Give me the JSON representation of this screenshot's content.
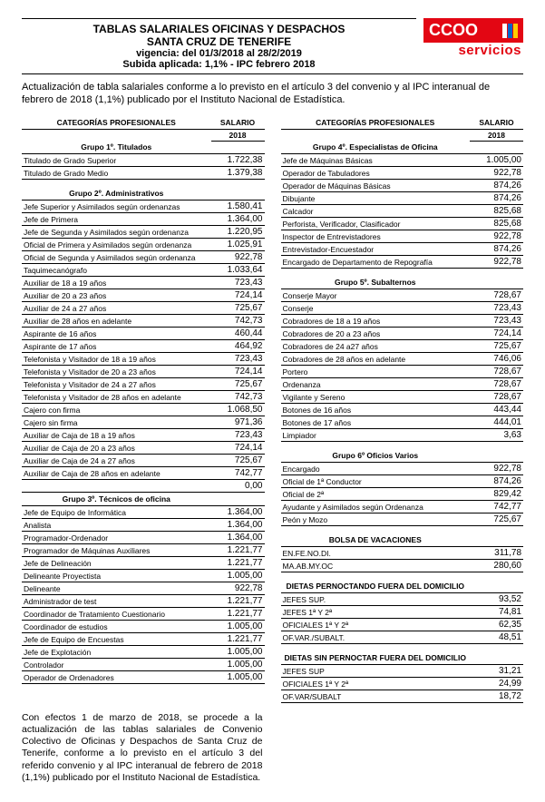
{
  "header": {
    "line1": "TABLAS SALARIALES OFICINAS Y DESPACHOS",
    "line2": "SANTA CRUZ DE TENERIFE",
    "line3": "vigencia: del 01/3/2018 al 28/2/2019",
    "line4": "Subida aplicada: 1,1% - IPC febrero 2018"
  },
  "logo": {
    "text": "CCOO",
    "sub": "servicios",
    "bg": "#e30613",
    "stripe1": "#ffffff",
    "stripe2": "#0066cc",
    "stripe3": "#ffcc00"
  },
  "intro": "Actualización de tabla salariales conforme a lo previsto en el artículo 3 del convenio y al IPC interanual de febrero de 2018 (1,1%) publicado por el Instituto Nacional de Estadística.",
  "col_headers": {
    "cat": "CATEGORÍAS PROFESIONALES",
    "sal": "SALARIO",
    "year": "2018"
  },
  "left": [
    {
      "type": "group",
      "label": "Grupo 1º. Titulados"
    },
    {
      "type": "row",
      "label": "Titulado de Grado Superior",
      "val": "1.722,38"
    },
    {
      "type": "row",
      "label": "Titulado de Grado Medio",
      "val": "1.379,38"
    },
    {
      "type": "spacer"
    },
    {
      "type": "group",
      "label": "Grupo 2º. Administrativos"
    },
    {
      "type": "row",
      "label": "Jefe Superior y Asimilados según ordenanzas",
      "val": "1.580,41"
    },
    {
      "type": "row",
      "label": "Jefe de Primera",
      "val": "1.364,00"
    },
    {
      "type": "row",
      "label": "Jefe de Segunda y Asimilados según ordenanza",
      "val": "1.220,95"
    },
    {
      "type": "row",
      "label": "Oficial de Primera y Asimilados según ordenanza",
      "val": "1.025,91"
    },
    {
      "type": "row",
      "label": "Oficial de Segunda y Asimilados según ordenanza",
      "val": "922,78"
    },
    {
      "type": "row",
      "label": "Taquimecanógrafo",
      "val": "1.033,64"
    },
    {
      "type": "row",
      "label": "Auxiliar de 18 a 19 años",
      "val": "723,43"
    },
    {
      "type": "row",
      "label": "Auxiliar de 20 a 23 años",
      "val": "724,14"
    },
    {
      "type": "row",
      "label": "Auxiliar de 24 a 27 años",
      "val": "725,67"
    },
    {
      "type": "row",
      "label": "Auxiliar de 28 años en adelante",
      "val": "742,73"
    },
    {
      "type": "row",
      "label": "Aspirante de 16 años",
      "val": "460,44"
    },
    {
      "type": "row",
      "label": "Aspirante de 17 años",
      "val": "464,92"
    },
    {
      "type": "row",
      "label": "Telefonista y Visitador de 18 a 19 años",
      "val": "723,43"
    },
    {
      "type": "row",
      "label": "Telefonista y Visitador de 20 a 23 años",
      "val": "724,14"
    },
    {
      "type": "row",
      "label": "Telefonista y Visitador de 24 a 27 años",
      "val": "725,67"
    },
    {
      "type": "row",
      "label": "Telefonista y Visitador de 28 años en adelante",
      "val": "742,73"
    },
    {
      "type": "row",
      "label": "Cajero con firma",
      "val": "1.068,50"
    },
    {
      "type": "row",
      "label": "Cajero sin firma",
      "val": "971,36"
    },
    {
      "type": "row",
      "label": "Auxiliar de Caja de 18 a 19 años",
      "val": "723,43"
    },
    {
      "type": "row",
      "label": "Auxiliar de Caja de 20 a 23 años",
      "val": "724,14"
    },
    {
      "type": "row",
      "label": "Auxiliar de Caja de 24 a 27 años",
      "val": "725,67"
    },
    {
      "type": "row",
      "label": "Auxiliar de Caja de 28 años en adelante",
      "val": "742,77"
    },
    {
      "type": "row",
      "label": "",
      "val": "0,00"
    },
    {
      "type": "group",
      "label": "Grupo 3º. Técnicos de oficina"
    },
    {
      "type": "row",
      "label": "Jefe de Equipo de Informática",
      "val": "1.364,00"
    },
    {
      "type": "row",
      "label": "Analista",
      "val": "1.364,00"
    },
    {
      "type": "row",
      "label": "Programador-Ordenador",
      "val": "1.364,00"
    },
    {
      "type": "row",
      "label": "Programador de Máquinas Auxiliares",
      "val": "1.221,77"
    },
    {
      "type": "row",
      "label": "Jefe de Delineación",
      "val": "1.221,77"
    },
    {
      "type": "row",
      "label": "Delineante Proyectista",
      "val": "1.005,00"
    },
    {
      "type": "row",
      "label": "Delineante",
      "val": "922,78"
    },
    {
      "type": "row",
      "label": "Administrador de test",
      "val": "1.221,77"
    },
    {
      "type": "row",
      "label": "Coordinador de Tratamiento Cuestionario",
      "val": "1.221,77"
    },
    {
      "type": "row",
      "label": "Coordinador de estudios",
      "val": "1.005,00"
    },
    {
      "type": "row",
      "label": "Jefe de Equipo de Encuestas",
      "val": "1.221,77"
    },
    {
      "type": "row",
      "label": "Jefe de Explotación",
      "val": "1.005,00"
    },
    {
      "type": "row",
      "label": "Controlador",
      "val": "1.005,00"
    },
    {
      "type": "row",
      "label": "Operador de Ordenadores",
      "val": "1.005,00"
    }
  ],
  "right": [
    {
      "type": "group",
      "label": "Grupo 4º. Especialistas de Oficina"
    },
    {
      "type": "row",
      "label": "Jefe de Máquinas Básicas",
      "val": "1.005,00"
    },
    {
      "type": "row",
      "label": "Operador de Tabuladores",
      "val": "922,78"
    },
    {
      "type": "row",
      "label": "Operador de Máquinas Básicas",
      "val": "874,26"
    },
    {
      "type": "row",
      "label": "Dibujante",
      "val": "874,26"
    },
    {
      "type": "row",
      "label": "Calcador",
      "val": "825,68"
    },
    {
      "type": "row",
      "label": "Perforista, Verificador, Clasificador",
      "val": "825,68"
    },
    {
      "type": "row",
      "label": "Inspector de Entrevistadores",
      "val": "922,78"
    },
    {
      "type": "row",
      "label": "Entrevistador-Encuestador",
      "val": "874,26"
    },
    {
      "type": "row",
      "label": "Encargado de Departamento de Repografía",
      "val": "922,78"
    },
    {
      "type": "spacer"
    },
    {
      "type": "group",
      "label": "Grupo 5º. Subalternos"
    },
    {
      "type": "row",
      "label": "Conserje Mayor",
      "val": "728,67"
    },
    {
      "type": "row",
      "label": "Conserje",
      "val": "723,43"
    },
    {
      "type": "row",
      "label": "Cobradores de 18 a 19 años",
      "val": "723,43"
    },
    {
      "type": "row",
      "label": "Cobradores de 20 a 23 años",
      "val": "724,14"
    },
    {
      "type": "row",
      "label": "Cobradores de 24 a27 años",
      "val": "725,67"
    },
    {
      "type": "row",
      "label": "Cobradores de 28 años en adelante",
      "val": "746,06"
    },
    {
      "type": "row",
      "label": "Portero",
      "val": "728,67"
    },
    {
      "type": "row",
      "label": "Ordenanza",
      "val": "728,67"
    },
    {
      "type": "row",
      "label": "Vigilante y Sereno",
      "val": "728,67"
    },
    {
      "type": "row",
      "label": "Botones de 16 años",
      "val": "443,44"
    },
    {
      "type": "row",
      "label": "Botones de 17 años",
      "val": "444,01"
    },
    {
      "type": "row",
      "label": "Limpiador",
      "val": "3,63"
    },
    {
      "type": "spacer"
    },
    {
      "type": "group",
      "label": "Grupo 6º Oficios Varios"
    },
    {
      "type": "row",
      "label": "Encargado",
      "val": "922,78"
    },
    {
      "type": "row",
      "label": "Oficial de 1ª Conductor",
      "val": "874,26"
    },
    {
      "type": "row",
      "label": "Oficial de 2ª",
      "val": "829,42"
    },
    {
      "type": "row",
      "label": "Ayudante y Asimilados según Ordenanza",
      "val": "742,77"
    },
    {
      "type": "row",
      "label": "Peón y Mozo",
      "val": "725,67"
    },
    {
      "type": "spacer"
    },
    {
      "type": "group",
      "label": "BOLSA DE VACACIONES"
    },
    {
      "type": "row",
      "label": "EN.FE.NO.DI.",
      "val": "311,78"
    },
    {
      "type": "row",
      "label": "MA.AB.MY.OC",
      "val": "280,60"
    },
    {
      "type": "spacer"
    },
    {
      "type": "group",
      "label": "DIETAS PERNOCTANDO FUERA DEL DOMICILIO"
    },
    {
      "type": "row",
      "label": "JEFES SUP.",
      "val": "93,52"
    },
    {
      "type": "row",
      "label": "JEFES 1ª Y 2ª",
      "val": "74,81"
    },
    {
      "type": "row",
      "label": "OFICIALES 1ª Y 2ª",
      "val": "62,35"
    },
    {
      "type": "row",
      "label": "OF.VAR./SUBALT.",
      "val": "48,51"
    },
    {
      "type": "spacer"
    },
    {
      "type": "group",
      "label": "DIETAS SIN PERNOCTAR FUERA DEL DOMICILIO"
    },
    {
      "type": "row",
      "label": "JEFES SUP",
      "val": "31,21"
    },
    {
      "type": "row",
      "label": "OFICIALES 1ª Y 2ª",
      "val": "24,99"
    },
    {
      "type": "row",
      "label": "OF.VAR/SUBALT",
      "val": "18,72"
    }
  ],
  "footer": "Con efectos 1 de marzo de 2018, se procede a la actualización de las tablas salariales de Convenio Colectivo de Oficinas y Despachos de Santa Cruz de Tenerife, conforme a lo previsto en el artículo 3 del referido convenio y al IPC interanual de febrero de 2018 (1,1%) publicado por el Instituto Nacional de Estadística."
}
